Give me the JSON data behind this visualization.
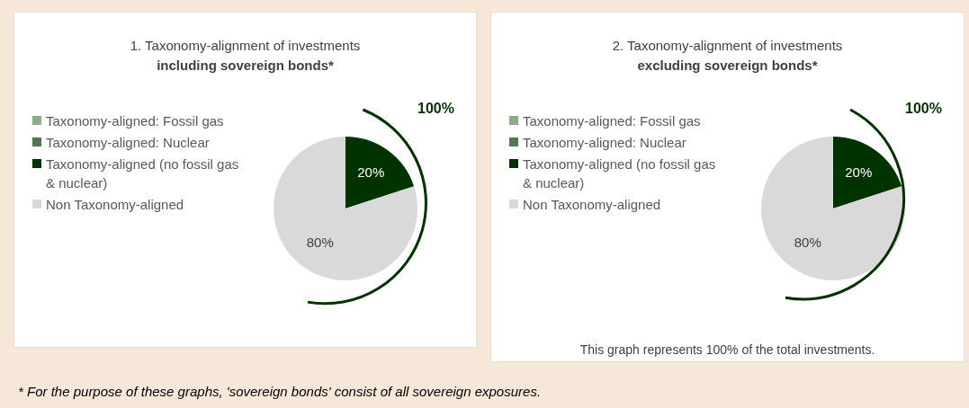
{
  "chart_data": [
    {
      "type": "pie",
      "title": "1. Taxonomy-alignment of investments",
      "subtitle": "including sovereign bonds*",
      "categories": [
        "Taxonomy-aligned: Fossil gas",
        "Taxonomy-aligned: Nuclear",
        "Taxonomy-aligned (no fossil gas & nuclear)",
        "Non Taxonomy-aligned"
      ],
      "values": [
        0,
        0,
        20,
        80
      ],
      "colors": [
        "#8aae8a",
        "#4e7a4e",
        "#003300",
        "#d9d9d9"
      ],
      "value_labels": [
        null,
        null,
        "20%",
        "80%"
      ],
      "legend": "left",
      "annotations": [
        "100%"
      ]
    },
    {
      "type": "pie",
      "title": "2. Taxonomy-alignment of investments",
      "subtitle": "excluding sovereign bonds*",
      "categories": [
        "Taxonomy-aligned: Fossil gas",
        "Taxonomy-aligned: Nuclear",
        "Taxonomy-aligned (no fossil gas & nuclear)",
        "Non Taxonomy-aligned"
      ],
      "values": [
        0,
        0,
        20,
        80
      ],
      "colors": [
        "#8aae8a",
        "#4e7a4e",
        "#003300",
        "#d9d9d9"
      ],
      "value_labels": [
        null,
        null,
        "20%",
        "80%"
      ],
      "legend": "left",
      "annotations": [
        "100%",
        "This graph represents 100% of the total investments.",
        "* For the purpose of these graphs, 'sovereign bonds' consist of all sovereign exposures."
      ]
    }
  ]
}
